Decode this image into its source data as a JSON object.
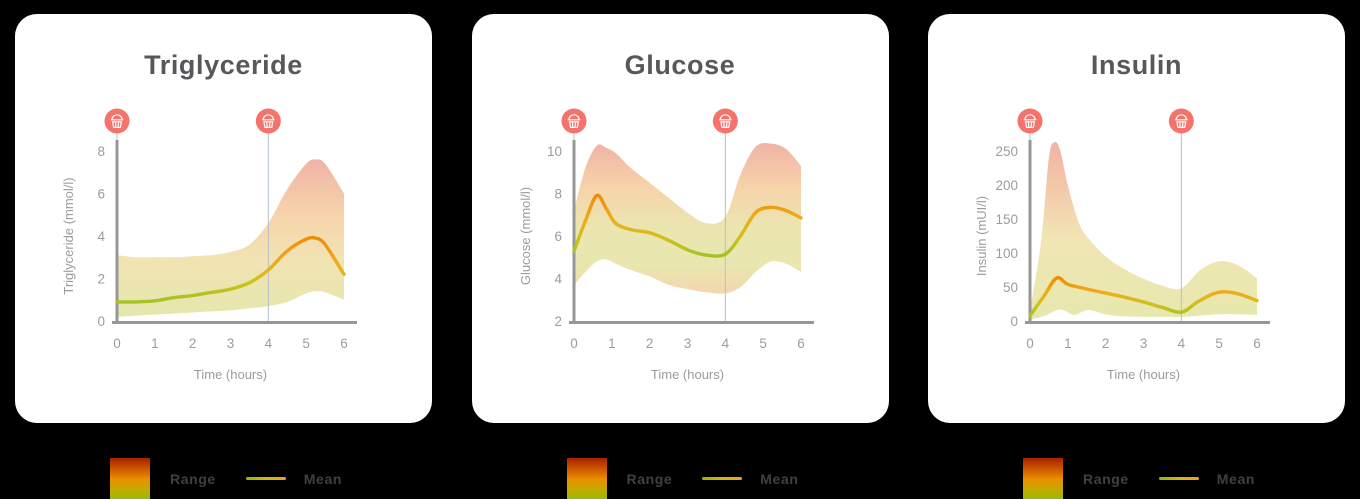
{
  "legend": {
    "range_label": "Range",
    "mean_label": "Mean"
  },
  "icons": {
    "meal": "cupcake-in-red-circle"
  },
  "palette": {
    "background": "#000000",
    "card": "#ffffff",
    "title_text": "#57585b",
    "axis": "#979797",
    "tick_text": "#9c9c9c",
    "meal_marker": "#f4746b",
    "meal_line": "#b6c0cb",
    "legend_text": "#3e4044",
    "line_gradient_top_to_bottom": [
      "#ee8d06",
      "#f2a81c",
      "#cfc11c",
      "#a5c226"
    ],
    "legend_swatch_gradient": [
      "#a81f00",
      "#d05a00",
      "#ea8f00",
      "#c3ab00",
      "#9cb802"
    ]
  },
  "chart_data": [
    {
      "type": "line",
      "title": "Triglyceride",
      "xlabel": "Time (hours)",
      "ylabel": "Triglyceride (mmol/l)",
      "xlim": [
        0,
        6
      ],
      "ylim": [
        0,
        8
      ],
      "x_ticks": [
        0,
        1,
        2,
        3,
        4,
        5,
        6
      ],
      "y_ticks": [
        0,
        2,
        4,
        6,
        8
      ],
      "meal_markers_x": [
        0,
        4
      ],
      "grid": false,
      "series": [
        {
          "name": "Mean",
          "x": [
            0,
            0.5,
            1,
            1.5,
            2,
            2.5,
            3,
            3.5,
            4,
            4.5,
            5,
            5.25,
            5.5,
            6
          ],
          "y": [
            0.9,
            0.9,
            0.95,
            1.1,
            1.2,
            1.35,
            1.5,
            1.8,
            2.4,
            3.3,
            3.85,
            3.9,
            3.6,
            2.2
          ]
        },
        {
          "name": "Range upper",
          "x": [
            0,
            0.5,
            1,
            1.5,
            2,
            2.5,
            3,
            3.5,
            4,
            4.5,
            5,
            5.25,
            5.5,
            6
          ],
          "y": [
            3.1,
            3.0,
            3.0,
            3.0,
            3.05,
            3.1,
            3.25,
            3.6,
            4.6,
            6.2,
            7.4,
            7.6,
            7.4,
            6.0
          ]
        },
        {
          "name": "Range lower",
          "x": [
            0,
            0.5,
            1,
            1.5,
            2,
            2.5,
            3,
            3.5,
            4,
            4.5,
            5,
            5.25,
            5.5,
            6
          ],
          "y": [
            0.2,
            0.25,
            0.3,
            0.35,
            0.4,
            0.45,
            0.5,
            0.6,
            0.7,
            0.9,
            1.3,
            1.4,
            1.35,
            1.0
          ]
        }
      ],
      "band_gradient": [
        {
          "offset": 0,
          "color": "#eeab9b"
        },
        {
          "offset": 0.35,
          "color": "#f6cfa2"
        },
        {
          "offset": 0.62,
          "color": "#f0e0ab"
        },
        {
          "offset": 1,
          "color": "#e2e5a4"
        }
      ]
    },
    {
      "type": "line",
      "title": "Glucose",
      "xlabel": "Time (hours)",
      "ylabel": "Glucose (mmol/l)",
      "xlim": [
        0,
        6
      ],
      "ylim": [
        2,
        10
      ],
      "x_ticks": [
        0,
        1,
        2,
        3,
        4,
        5,
        6
      ],
      "y_ticks": [
        2,
        4,
        6,
        8,
        10
      ],
      "meal_markers_x": [
        0,
        4
      ],
      "grid": false,
      "series": [
        {
          "name": "Mean",
          "x": [
            0,
            0.3,
            0.6,
            0.85,
            1.1,
            1.5,
            2,
            2.5,
            3,
            3.5,
            4,
            4.4,
            4.8,
            5.2,
            5.6,
            6
          ],
          "y": [
            5.3,
            6.7,
            7.9,
            7.3,
            6.6,
            6.3,
            6.15,
            5.8,
            5.35,
            5.1,
            5.15,
            6.0,
            7.1,
            7.35,
            7.2,
            6.85
          ]
        },
        {
          "name": "Range upper",
          "x": [
            0,
            0.3,
            0.6,
            0.85,
            1.1,
            1.5,
            2,
            2.5,
            3,
            3.5,
            4,
            4.4,
            4.8,
            5.2,
            5.6,
            6
          ],
          "y": [
            7.2,
            9.2,
            10.25,
            10.15,
            9.9,
            9.2,
            8.5,
            7.8,
            7.1,
            6.6,
            6.9,
            8.9,
            10.2,
            10.35,
            10.1,
            9.3
          ]
        },
        {
          "name": "Range lower",
          "x": [
            0,
            0.3,
            0.6,
            0.85,
            1.1,
            1.5,
            2,
            2.5,
            3,
            3.5,
            4,
            4.4,
            4.8,
            5.2,
            5.6,
            6
          ],
          "y": [
            3.7,
            4.3,
            4.8,
            4.9,
            4.7,
            4.4,
            4.1,
            3.7,
            3.5,
            3.35,
            3.3,
            3.6,
            4.3,
            4.8,
            4.7,
            4.3
          ]
        }
      ],
      "band_gradient": [
        {
          "offset": 0,
          "color": "#eeab9b"
        },
        {
          "offset": 0.3,
          "color": "#f6cfa2"
        },
        {
          "offset": 0.55,
          "color": "#e9e2a8"
        },
        {
          "offset": 0.82,
          "color": "#e7e4a6"
        },
        {
          "offset": 1,
          "color": "#f2d2a6"
        }
      ]
    },
    {
      "type": "line",
      "title": "Insulin",
      "xlabel": "Time (hours)",
      "ylabel": "Insulin (mUI/l)",
      "xlim": [
        0,
        6
      ],
      "ylim": [
        0,
        250
      ],
      "x_ticks": [
        0,
        1,
        2,
        3,
        4,
        5,
        6
      ],
      "y_ticks": [
        0,
        50,
        100,
        150,
        200,
        250
      ],
      "meal_markers_x": [
        0,
        4
      ],
      "grid": false,
      "series": [
        {
          "name": "Mean",
          "x": [
            0,
            0.35,
            0.7,
            1,
            1.5,
            2,
            2.5,
            3,
            3.5,
            4,
            4.4,
            4.8,
            5.1,
            5.5,
            6
          ],
          "y": [
            8,
            35,
            63,
            54,
            47,
            41,
            35,
            28,
            20,
            13,
            27,
            39,
            43,
            40,
            30
          ]
        },
        {
          "name": "Range upper",
          "x": [
            0,
            0.3,
            0.5,
            0.65,
            0.8,
            1,
            1.3,
            1.6,
            2,
            2.5,
            3,
            3.5,
            4,
            4.5,
            5,
            5.5,
            6
          ],
          "y": [
            15,
            120,
            240,
            263,
            250,
            200,
            143,
            118,
            95,
            76,
            62,
            52,
            48,
            75,
            88,
            82,
            63
          ]
        },
        {
          "name": "Range lower",
          "x": [
            0,
            0.4,
            0.8,
            1.15,
            1.5,
            1.8,
            2.2,
            3,
            3.5,
            4,
            4.5,
            5,
            5.5,
            6
          ],
          "y": [
            2,
            8,
            17,
            9,
            16,
            13,
            8,
            6,
            6,
            6,
            8,
            10,
            10,
            9
          ]
        }
      ],
      "band_gradient": [
        {
          "offset": 0,
          "color": "#eeab9b"
        },
        {
          "offset": 0.28,
          "color": "#f2c5a0"
        },
        {
          "offset": 0.55,
          "color": "#efe3ac"
        },
        {
          "offset": 1,
          "color": "#e4e5a4"
        }
      ]
    }
  ]
}
